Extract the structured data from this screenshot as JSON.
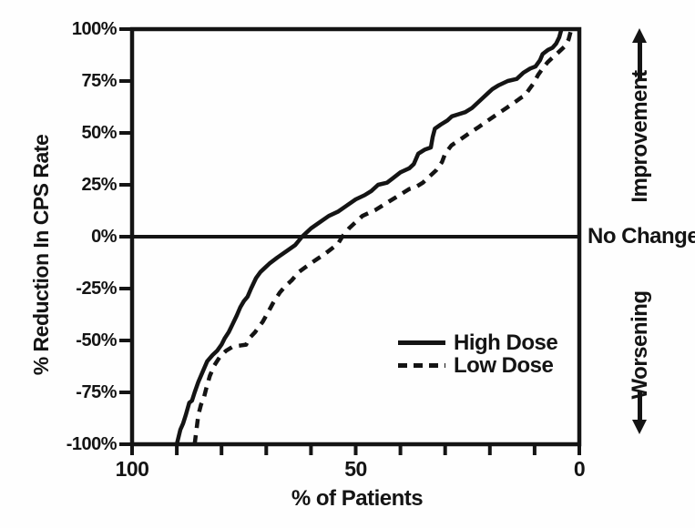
{
  "figure": {
    "background": "#fefefe",
    "ink_color": "#141414"
  },
  "annotations": {
    "improvement": "Improvement",
    "no_change": "No Change",
    "worsening": "Worsening"
  },
  "y_axis": {
    "ticks": [
      {
        "value": 100,
        "label": "100%"
      },
      {
        "value": 75,
        "label": "75%"
      },
      {
        "value": 50,
        "label": "50%"
      },
      {
        "value": 25,
        "label": "25%"
      },
      {
        "value": 0,
        "label": "0%"
      },
      {
        "value": -25,
        "label": "-25%"
      },
      {
        "value": -50,
        "label": "-50%"
      },
      {
        "value": -75,
        "label": "-75%"
      },
      {
        "value": -100,
        "label": "-100%"
      }
    ]
  },
  "x_axis": {
    "ticks": [
      {
        "value": 100,
        "label": "100"
      },
      {
        "value": 50,
        "label": "50"
      },
      {
        "value": 0,
        "label": "0"
      }
    ],
    "minor_step": 10,
    "min": 0,
    "max": 100,
    "reversed": true
  },
  "chart_data": {
    "type": "line",
    "title": "",
    "xlabel": "% of Patients",
    "ylabel": "% Reduction In CPS Rate",
    "xlim": [
      100,
      0
    ],
    "ylim": [
      -100,
      100
    ],
    "grid": false,
    "zero_line": true,
    "legend_position": "lower-right-inside",
    "series": [
      {
        "name": "High Dose",
        "style": "solid",
        "points": [
          [
            90,
            -100
          ],
          [
            89.2,
            -93
          ],
          [
            88.6,
            -90
          ],
          [
            88,
            -86
          ],
          [
            87.2,
            -80
          ],
          [
            86.6,
            -79
          ],
          [
            86,
            -75
          ],
          [
            85.2,
            -70
          ],
          [
            84.2,
            -65
          ],
          [
            83.2,
            -60
          ],
          [
            82,
            -57
          ],
          [
            81,
            -55
          ],
          [
            80,
            -52
          ],
          [
            79.3,
            -49
          ],
          [
            78.4,
            -46
          ],
          [
            77.5,
            -42
          ],
          [
            76.6,
            -38
          ],
          [
            75.8,
            -34
          ],
          [
            75,
            -31
          ],
          [
            74.2,
            -29
          ],
          [
            73.4,
            -25
          ],
          [
            72.3,
            -20
          ],
          [
            71.3,
            -17
          ],
          [
            70.3,
            -15
          ],
          [
            69.3,
            -13
          ],
          [
            67.5,
            -10
          ],
          [
            65.5,
            -7
          ],
          [
            63.5,
            -4
          ],
          [
            62,
            0
          ],
          [
            60,
            4
          ],
          [
            58,
            7
          ],
          [
            56,
            10
          ],
          [
            54,
            12
          ],
          [
            52,
            15
          ],
          [
            50,
            18
          ],
          [
            48,
            20
          ],
          [
            46.5,
            22
          ],
          [
            45,
            25
          ],
          [
            43,
            26
          ],
          [
            41.8,
            28
          ],
          [
            40,
            31
          ],
          [
            38,
            33
          ],
          [
            37,
            35
          ],
          [
            36,
            40
          ],
          [
            34.5,
            42
          ],
          [
            33.2,
            43
          ],
          [
            32.8,
            48
          ],
          [
            32.3,
            52
          ],
          [
            31,
            54
          ],
          [
            29.5,
            56
          ],
          [
            28.5,
            58
          ],
          [
            27,
            59
          ],
          [
            25.5,
            60
          ],
          [
            24,
            62
          ],
          [
            22,
            66
          ],
          [
            20.5,
            69
          ],
          [
            19.5,
            71
          ],
          [
            18,
            73
          ],
          [
            16,
            75
          ],
          [
            14,
            76
          ],
          [
            12.5,
            79
          ],
          [
            11,
            81
          ],
          [
            9.8,
            82
          ],
          [
            8.8,
            85
          ],
          [
            8.2,
            88
          ],
          [
            7,
            90
          ],
          [
            6,
            91
          ],
          [
            5.2,
            93
          ],
          [
            4.5,
            96
          ],
          [
            4,
            100
          ]
        ]
      },
      {
        "name": "Low Dose",
        "style": "dashed",
        "points": [
          [
            86,
            -100
          ],
          [
            85.6,
            -93
          ],
          [
            85.2,
            -86
          ],
          [
            84.6,
            -81
          ],
          [
            84,
            -78
          ],
          [
            83.4,
            -73
          ],
          [
            82.6,
            -67
          ],
          [
            81.6,
            -62
          ],
          [
            80.4,
            -58
          ],
          [
            79,
            -55
          ],
          [
            77.5,
            -53
          ],
          [
            76,
            -52.5
          ],
          [
            74.5,
            -52
          ],
          [
            73.8,
            -49
          ],
          [
            72.5,
            -46
          ],
          [
            71.5,
            -43
          ],
          [
            70.8,
            -41
          ],
          [
            69.5,
            -36
          ],
          [
            68.5,
            -32
          ],
          [
            67,
            -27
          ],
          [
            65.8,
            -24
          ],
          [
            64.3,
            -21
          ],
          [
            62.7,
            -17
          ],
          [
            60.8,
            -14
          ],
          [
            58.8,
            -11
          ],
          [
            56.7,
            -8
          ],
          [
            55.2,
            -5.5
          ],
          [
            54,
            -3.5
          ],
          [
            53,
            0
          ],
          [
            51.5,
            4
          ],
          [
            50,
            7
          ],
          [
            48.5,
            10
          ],
          [
            47,
            11.5
          ],
          [
            45.5,
            13
          ],
          [
            44,
            15
          ],
          [
            42.5,
            17
          ],
          [
            41,
            19
          ],
          [
            39.5,
            21
          ],
          [
            38,
            23
          ],
          [
            36.5,
            24
          ],
          [
            35,
            26
          ],
          [
            33.5,
            29
          ],
          [
            32,
            32
          ],
          [
            30.7,
            36
          ],
          [
            30,
            40
          ],
          [
            28.6,
            44
          ],
          [
            26.5,
            47
          ],
          [
            24.5,
            50
          ],
          [
            22.4,
            53
          ],
          [
            20.4,
            56
          ],
          [
            18.4,
            59
          ],
          [
            16.3,
            62
          ],
          [
            14.3,
            65
          ],
          [
            13,
            67
          ],
          [
            12.2,
            68
          ],
          [
            11.2,
            71
          ],
          [
            10.2,
            74
          ],
          [
            9.2,
            78
          ],
          [
            8.2,
            81
          ],
          [
            7.1,
            84
          ],
          [
            6.1,
            86
          ],
          [
            5.1,
            88
          ],
          [
            4.1,
            90
          ],
          [
            3.1,
            92
          ],
          [
            2.4,
            95
          ],
          [
            1.8,
            100
          ]
        ]
      }
    ]
  }
}
